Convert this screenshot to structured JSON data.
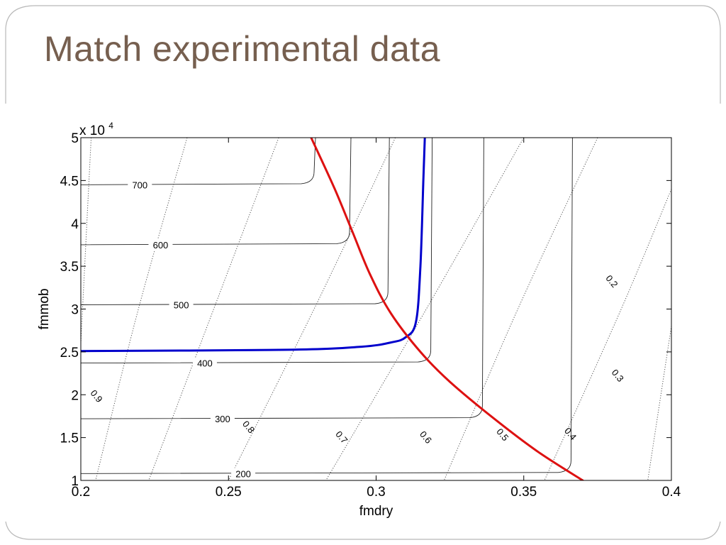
{
  "slide": {
    "title": "Match experimental data"
  },
  "chart_data": {
    "type": "line",
    "xlabel": "fmdry",
    "ylabel": "fmmob",
    "xlim": [
      0.2,
      0.4
    ],
    "ylim": [
      10000,
      50000
    ],
    "x_ticks": [
      {
        "value": 0.2,
        "label": "0.2"
      },
      {
        "value": 0.25,
        "label": "0.25"
      },
      {
        "value": 0.3,
        "label": "0.3"
      },
      {
        "value": 0.35,
        "label": "0.35"
      },
      {
        "value": 0.4,
        "label": "0.4"
      }
    ],
    "y_ticks": [
      {
        "value": 10000,
        "label": "1"
      },
      {
        "value": 15000,
        "label": "1.5"
      },
      {
        "value": 20000,
        "label": "2"
      },
      {
        "value": 25000,
        "label": "2.5"
      },
      {
        "value": 30000,
        "label": "3"
      },
      {
        "value": 35000,
        "label": "3.5"
      },
      {
        "value": 40000,
        "label": "4"
      },
      {
        "value": 45000,
        "label": "4.5"
      },
      {
        "value": 50000,
        "label": "5"
      }
    ],
    "y_exponent_label": "x 10",
    "y_exponent_power": "4",
    "grid": false,
    "solid_contours": [
      {
        "level": "200",
        "y_flat": 10800,
        "x_corner": 0.366,
        "label_x": 0.255
      },
      {
        "level": "300",
        "y_flat": 17200,
        "x_corner": 0.336,
        "label_x": 0.248
      },
      {
        "level": "400",
        "y_flat": 23700,
        "x_corner": 0.3185,
        "label_x": 0.242
      },
      {
        "level": "500",
        "y_flat": 30500,
        "x_corner": 0.304,
        "label_x": 0.234
      },
      {
        "level": "600",
        "y_flat": 37500,
        "x_corner": 0.291,
        "label_x": 0.227
      },
      {
        "level": "700",
        "y_flat": 44500,
        "x_corner": 0.279,
        "label_x": 0.22
      }
    ],
    "dotted_contours": [
      {
        "level": "0.9",
        "points": [
          [
            0.2035,
            50000
          ],
          [
            0.2,
            26000
          ]
        ],
        "label_at": [
          0.2045,
          19600
        ]
      },
      {
        "level": "0.8",
        "points": [
          [
            0.236,
            50000
          ],
          [
            0.2195,
            30000
          ],
          [
            0.205,
            10000
          ]
        ],
        "label_at": [
          0.256,
          16000
        ]
      },
      {
        "level": "0.7",
        "points": [
          [
            0.267,
            50000
          ],
          [
            0.245,
            30000
          ],
          [
            0.223,
            10000
          ]
        ],
        "label_at": [
          0.2875,
          14800
        ]
      },
      {
        "level": "0.6",
        "points": [
          [
            0.3065,
            50000
          ],
          [
            0.279,
            30000
          ],
          [
            0.25,
            10000
          ]
        ],
        "label_at": [
          0.316,
          14800
        ]
      },
      {
        "level": "0.5",
        "points": [
          [
            0.35,
            50000
          ],
          [
            0.317,
            30000
          ],
          [
            0.283,
            10000
          ]
        ],
        "label_at": [
          0.342,
          15100
        ]
      },
      {
        "level": "0.4",
        "points": [
          [
            0.375,
            50000
          ],
          [
            0.348,
            30000
          ],
          [
            0.323,
            10000
          ]
        ],
        "label_at": [
          0.365,
          15200
        ]
      },
      {
        "level": "0.3",
        "points": [
          [
            0.4,
            44000
          ],
          [
            0.383,
            30000
          ],
          [
            0.357,
            10000
          ]
        ],
        "label_at": [
          0.381,
          22000
        ]
      },
      {
        "level": "0.2",
        "points": [
          [
            0.4,
            28000
          ],
          [
            0.392,
            10000
          ]
        ],
        "label_at": [
          0.379,
          33000
        ]
      }
    ],
    "series": [
      {
        "color": "#0000cc",
        "points": [
          [
            0.2,
            25100
          ],
          [
            0.27,
            25250
          ],
          [
            0.295,
            25600
          ],
          [
            0.305,
            26100
          ],
          [
            0.31,
            26700
          ],
          [
            0.3135,
            28500
          ],
          [
            0.315,
            35000
          ],
          [
            0.316,
            45000
          ],
          [
            0.3165,
            50000
          ]
        ]
      },
      {
        "color": "#dd1111",
        "points": [
          [
            0.278,
            50000
          ],
          [
            0.286,
            44000
          ],
          [
            0.292,
            39000
          ],
          [
            0.298,
            34000
          ],
          [
            0.305,
            29500
          ],
          [
            0.315,
            25000
          ],
          [
            0.325,
            21500
          ],
          [
            0.34,
            17200
          ],
          [
            0.355,
            13300
          ],
          [
            0.37,
            10000
          ]
        ]
      }
    ]
  }
}
